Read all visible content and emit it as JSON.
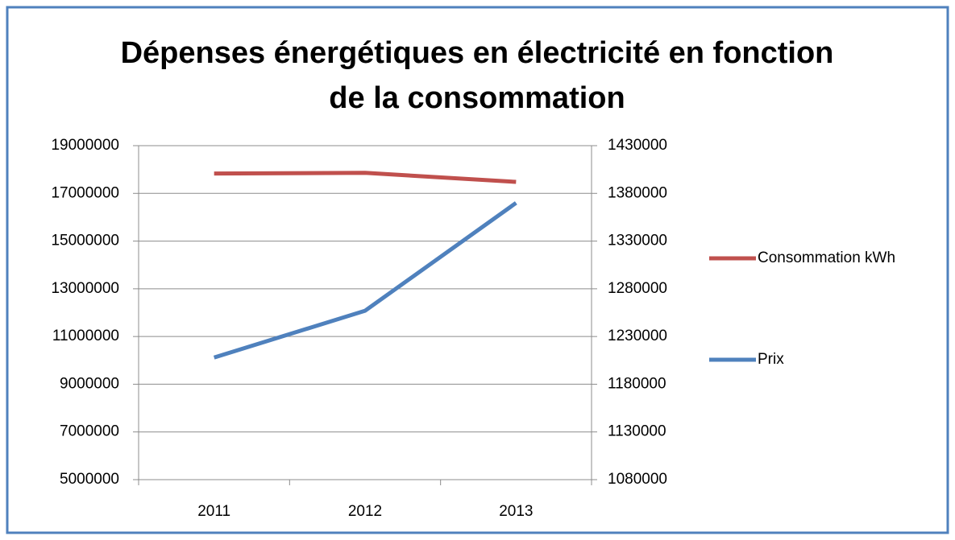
{
  "chart_data": {
    "type": "line",
    "title": "Dépenses énergétiques en électricité en fonction de la consommation",
    "categories": [
      "2011",
      "2012",
      "2013"
    ],
    "series": [
      {
        "name": "Consommation kWh",
        "color": "#c0504d",
        "values": [
          17830000,
          17860000,
          17480000
        ]
      },
      {
        "name": "Prix",
        "color": "#4f81bd",
        "axis": "y2",
        "values": [
          1208000,
          1257000,
          1370000
        ]
      }
    ],
    "ylim": [
      5000000,
      19000000
    ],
    "yticks": [
      5000000,
      7000000,
      9000000,
      11000000,
      13000000,
      15000000,
      17000000,
      19000000
    ],
    "y2lim": [
      1080000,
      1430000
    ],
    "y2ticks": [
      1080000,
      1130000,
      1180000,
      1230000,
      1280000,
      1330000,
      1380000,
      1430000
    ],
    "grid": true,
    "legend": "right"
  }
}
